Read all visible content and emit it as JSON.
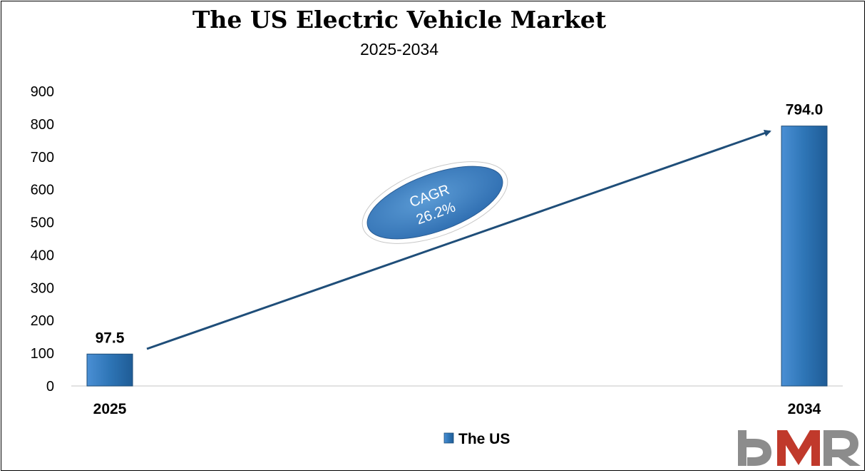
{
  "chart_data": {
    "type": "bar",
    "title": "The US Electric Vehicle Market",
    "subtitle": "2025-2034",
    "categories": [
      "2025",
      "2034"
    ],
    "series": [
      {
        "name": "The US",
        "values": [
          97.5,
          794.0
        ],
        "labels": [
          "97.5",
          "794.0"
        ],
        "color": "#2E75B6"
      }
    ],
    "ylim": [
      0,
      900
    ],
    "yticks": [
      0,
      100,
      200,
      300,
      400,
      500,
      600,
      700,
      800,
      900
    ],
    "grid": false,
    "legend": "bottom-center",
    "annotation": {
      "line1": "CAGR",
      "line2": "26.2%"
    }
  },
  "colors": {
    "bar": "#2E75B6",
    "arrow": "#1F4E79",
    "ellipse": "#3D7DC0",
    "logo_grey": "#8C8C8C",
    "logo_red": "#C0392B"
  },
  "logo": {
    "text": "DMR"
  }
}
